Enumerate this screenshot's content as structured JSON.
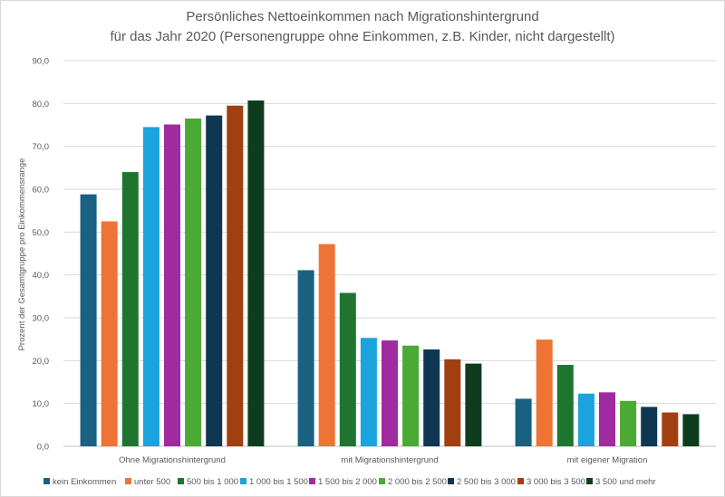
{
  "chart_data": {
    "type": "bar",
    "title": "Persönliches Nettoeinkommen nach Migrationshintergrund",
    "subtitle": "für das Jahr 2020 (Personengruppe ohne Einkommen, z.B. Kinder, nicht dargestellt)",
    "ylabel": "Prozent der Gesamtgruppe pro Einkommensrange",
    "xlabel": "",
    "ylim": [
      0,
      90
    ],
    "yticks": [
      0,
      10,
      20,
      30,
      40,
      50,
      60,
      70,
      80,
      90
    ],
    "ytick_labels": [
      "0,0",
      "10,0",
      "20,0",
      "30,0",
      "40,0",
      "50,0",
      "60,0",
      "70,0",
      "80,0",
      "90,0"
    ],
    "grid": true,
    "legend_position": "bottom",
    "categories": [
      "Ohne Migrationshintergrund",
      "mit Migrationshintergrund",
      "mit eigener Migration"
    ],
    "series": [
      {
        "name": "kein Einkommen",
        "color": "#1a6080",
        "values": [
          58.8,
          41.1,
          11.1
        ]
      },
      {
        "name": "unter 500",
        "color": "#ed7435",
        "values": [
          52.5,
          47.2,
          24.9
        ]
      },
      {
        "name": "500 bis 1 000",
        "color": "#1f7530",
        "values": [
          64.0,
          35.8,
          19.0
        ]
      },
      {
        "name": "1 000 bis 1 500",
        "color": "#1aa3dd",
        "values": [
          74.5,
          25.3,
          12.3
        ]
      },
      {
        "name": "1 500 bis 2 000",
        "color": "#a02aa0",
        "values": [
          75.1,
          24.7,
          12.6
        ]
      },
      {
        "name": "2 000 bis 2 500",
        "color": "#4aaa35",
        "values": [
          76.5,
          23.5,
          10.6
        ]
      },
      {
        "name": "2 500 bis 3 000",
        "color": "#0e3852",
        "values": [
          77.2,
          22.6,
          9.2
        ]
      },
      {
        "name": "3 000 bis 3 500",
        "color": "#a23f11",
        "values": [
          79.5,
          20.3,
          7.9
        ]
      },
      {
        "name": "3 500 und mehr",
        "color": "#0e3d1e",
        "values": [
          80.7,
          19.3,
          7.5
        ]
      }
    ]
  }
}
